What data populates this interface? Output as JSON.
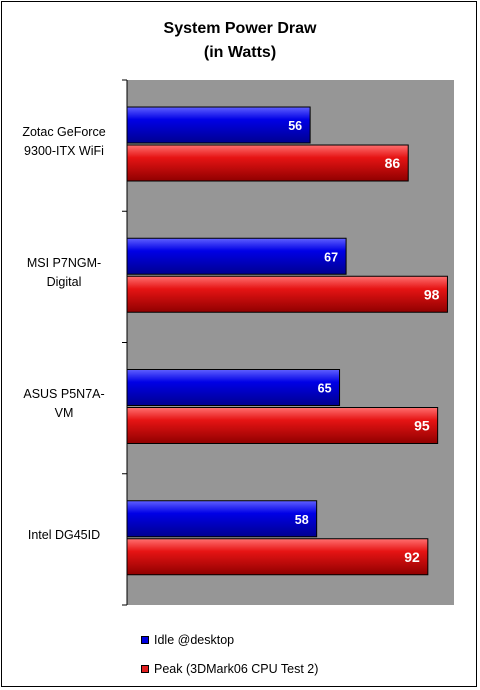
{
  "chart_data": {
    "type": "bar",
    "orientation": "horizontal",
    "title_line1": "System Power Draw",
    "title_line2": "(in Watts)",
    "categories": [
      [
        "Zotac GeForce",
        "9300-ITX WiFi"
      ],
      [
        "MSI P7NGM-",
        "Digital"
      ],
      [
        "ASUS P5N7A-",
        "VM"
      ],
      [
        "Intel DG45ID"
      ]
    ],
    "series": [
      {
        "name": "Idle @desktop",
        "color": "#0000e0",
        "values": [
          56,
          67,
          65,
          58
        ]
      },
      {
        "name": "Peak (3DMark06 CPU Test 2)",
        "color": "#e02020",
        "values": [
          86,
          98,
          95,
          92
        ]
      }
    ],
    "xlim": [
      0,
      100
    ],
    "legend_position": "bottom-left",
    "plot_background": "#969696"
  }
}
